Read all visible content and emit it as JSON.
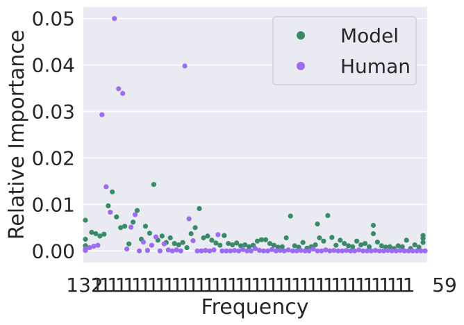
{
  "chart_data": {
    "type": "scatter",
    "title": "",
    "xlabel": "Frequency",
    "ylabel": "Relative Importance",
    "ylim": [
      -0.0025,
      0.0525
    ],
    "yticks": [
      0.0,
      0.01,
      0.02,
      0.03,
      0.04,
      0.05
    ],
    "ytick_labels": [
      "0.00",
      "0.01",
      "0.02",
      "0.03",
      "0.04",
      "0.05"
    ],
    "x_tick_labels_visible": {
      "left": "132",
      "right": "59"
    },
    "grid": true,
    "legend": {
      "placement": "top-right"
    },
    "colors": {
      "model": "#3a8a68",
      "human": "#9b6cf0",
      "plot_bg": "#eaeaf2",
      "grid": "#ffffff"
    },
    "series": [
      {
        "name": "Model",
        "points": [
          [
            1,
            0.0066
          ],
          [
            1,
            0.0025
          ],
          [
            1,
            0.0011
          ],
          [
            4,
            0.004
          ],
          [
            6,
            0.0037
          ],
          [
            8,
            0.0032
          ],
          [
            10,
            0.0036
          ],
          [
            12,
            0.0097
          ],
          [
            14,
            0.0127
          ],
          [
            16,
            0.0073
          ],
          [
            18,
            0.005
          ],
          [
            20,
            0.0053
          ],
          [
            22,
            0.0015
          ],
          [
            24,
            0.0062
          ],
          [
            26,
            0.0087
          ],
          [
            28,
            0.0025
          ],
          [
            30,
            0.0053
          ],
          [
            32,
            0.0038
          ],
          [
            34,
            0.0143
          ],
          [
            36,
            0.0023
          ],
          [
            38,
            0.0032
          ],
          [
            40,
            0.0018
          ],
          [
            42,
            0.0028
          ],
          [
            44,
            0.0016
          ],
          [
            46,
            0.0013
          ],
          [
            48,
            0.0018
          ],
          [
            50,
            0.0007
          ],
          [
            52,
            0.0037
          ],
          [
            54,
            0.005
          ],
          [
            56,
            0.0091
          ],
          [
            58,
            0.0028
          ],
          [
            60,
            0.0032
          ],
          [
            62,
            0.0023
          ],
          [
            64,
            0.0017
          ],
          [
            66,
            0.0012
          ],
          [
            68,
            0.0033
          ],
          [
            70,
            0.0016
          ],
          [
            72,
            0.0013
          ],
          [
            74,
            0.0017
          ],
          [
            76,
            0.0011
          ],
          [
            78,
            0.0013
          ],
          [
            80,
            0.0009
          ],
          [
            82,
            0.0012
          ],
          [
            84,
            0.0021
          ],
          [
            86,
            0.0024
          ],
          [
            88,
            0.0024
          ],
          [
            90,
            0.0016
          ],
          [
            92,
            0.0012
          ],
          [
            94,
            0.0008
          ],
          [
            96,
            0.0009
          ],
          [
            98,
            0.0028
          ],
          [
            100,
            0.0075
          ],
          [
            102,
            0.0011
          ],
          [
            104,
            0.0008
          ],
          [
            106,
            0.0018
          ],
          [
            108,
            0.0006
          ],
          [
            110,
            0.0009
          ],
          [
            112,
            0.0013
          ],
          [
            113,
            0.0058
          ],
          [
            114,
            0.0028
          ],
          [
            116,
            0.0021
          ],
          [
            118,
            0.0076
          ],
          [
            120,
            0.0029
          ],
          [
            122,
            0.0012
          ],
          [
            124,
            0.0023
          ],
          [
            126,
            0.0016
          ],
          [
            128,
            0.0011
          ],
          [
            130,
            0.0009
          ],
          [
            132,
            0.0021
          ],
          [
            134,
            0.0013
          ],
          [
            136,
            0.0016
          ],
          [
            138,
            0.0009
          ],
          [
            140,
            0.0055
          ],
          [
            140,
            0.0037
          ],
          [
            142,
            0.0019
          ],
          [
            144,
            0.0011
          ],
          [
            146,
            0.0008
          ],
          [
            148,
            0.0009
          ],
          [
            150,
            0.0005
          ],
          [
            152,
            0.0011
          ],
          [
            154,
            0.0009
          ],
          [
            156,
            0.0023
          ],
          [
            158,
            0.0005
          ],
          [
            160,
            0.0013
          ],
          [
            162,
            0.0008
          ],
          [
            164,
            0.0033
          ],
          [
            164,
            0.0027
          ],
          [
            164,
            0.0018
          ]
        ]
      },
      {
        "name": "Human",
        "points": [
          [
            1,
            0.0004
          ],
          [
            1,
            0.0001
          ],
          [
            3,
            0.0007
          ],
          [
            5,
            0.001
          ],
          [
            7,
            0.0012
          ],
          [
            9,
            0.0293
          ],
          [
            11,
            0.0138
          ],
          [
            13,
            0.0083
          ],
          [
            15,
            0.05
          ],
          [
            17,
            0.0349
          ],
          [
            19,
            0.0339
          ],
          [
            21,
            0.0004
          ],
          [
            23,
            0.0051
          ],
          [
            25,
            0.0078
          ],
          [
            27,
            0.0
          ],
          [
            29,
            0.0019
          ],
          [
            31,
            0.0001
          ],
          [
            33,
            0.0012
          ],
          [
            35,
            0.003
          ],
          [
            37,
            0.0
          ],
          [
            39,
            0.0015
          ],
          [
            41,
            0.0002
          ],
          [
            43,
            0.0
          ],
          [
            45,
            0.0002
          ],
          [
            47,
            0.0
          ],
          [
            49,
            0.0398
          ],
          [
            51,
            0.0069
          ],
          [
            53,
            0.0022
          ],
          [
            55,
            0.0
          ],
          [
            57,
            0.0
          ],
          [
            59,
            0.0001
          ],
          [
            61,
            0.0
          ],
          [
            63,
            0.0002
          ],
          [
            65,
            0.0035
          ],
          [
            67,
            0.0
          ],
          [
            69,
            0.0
          ],
          [
            71,
            0.0
          ],
          [
            73,
            0.0001
          ],
          [
            75,
            0.0
          ],
          [
            77,
            0.0003
          ],
          [
            79,
            0.0
          ],
          [
            81,
            0.0
          ],
          [
            83,
            0.0005
          ],
          [
            85,
            0.0001
          ],
          [
            87,
            0.0
          ],
          [
            89,
            0.0
          ],
          [
            91,
            0.0003
          ],
          [
            93,
            0.0
          ],
          [
            95,
            0.0001
          ],
          [
            97,
            0.0
          ],
          [
            99,
            0.0002
          ],
          [
            101,
            0.0
          ],
          [
            103,
            0.0
          ],
          [
            105,
            0.0001
          ],
          [
            107,
            0.0
          ],
          [
            109,
            0.0
          ],
          [
            111,
            0.0004
          ],
          [
            113,
            0.0
          ],
          [
            115,
            0.0
          ],
          [
            117,
            0.0002
          ],
          [
            119,
            0.0
          ],
          [
            121,
            0.0001
          ],
          [
            123,
            0.0
          ],
          [
            125,
            0.0
          ],
          [
            127,
            0.0001
          ],
          [
            129,
            0.0
          ],
          [
            131,
            0.0
          ],
          [
            133,
            0.0002
          ],
          [
            135,
            0.0
          ],
          [
            137,
            0.0
          ],
          [
            139,
            0.0
          ],
          [
            141,
            0.0001
          ],
          [
            143,
            0.0
          ],
          [
            145,
            0.0
          ],
          [
            147,
            0.0001
          ],
          [
            149,
            0.0
          ],
          [
            151,
            0.0
          ],
          [
            153,
            0.0001
          ],
          [
            155,
            0.0
          ],
          [
            157,
            0.0
          ],
          [
            159,
            0.0
          ],
          [
            161,
            0.0
          ],
          [
            163,
            0.0
          ],
          [
            165,
            0.0
          ]
        ]
      }
    ]
  }
}
